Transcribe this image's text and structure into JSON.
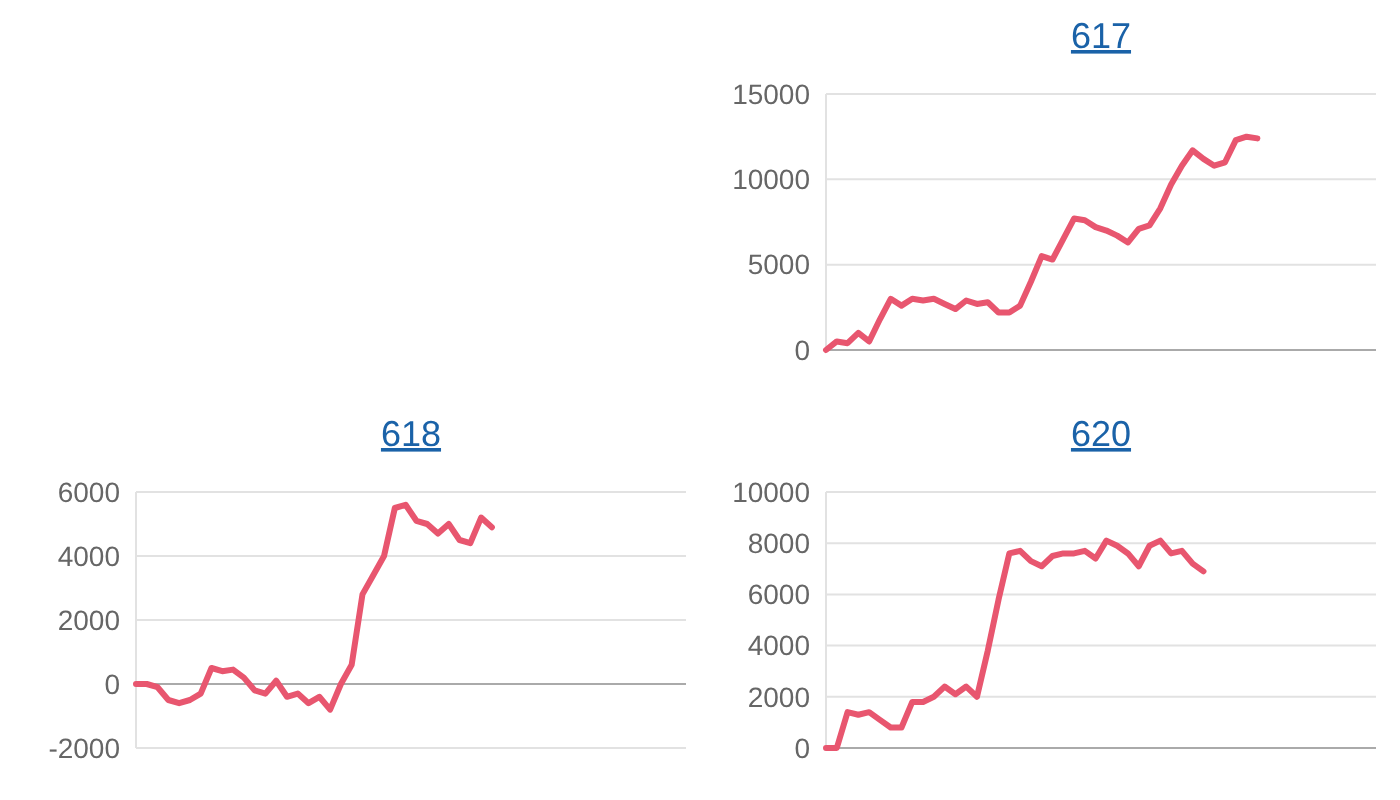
{
  "chart_data": [
    {
      "type": "line",
      "title": "617",
      "categories": [
        null,
        null,
        null,
        null,
        null,
        null,
        null,
        null,
        null,
        null,
        null,
        null,
        null,
        null,
        null,
        null,
        null,
        null,
        null,
        null,
        null,
        null,
        null,
        null,
        null,
        null,
        null,
        null,
        null,
        null,
        null,
        null,
        null,
        null,
        null,
        null,
        null,
        null,
        null,
        null,
        null,
        null,
        null,
        null,
        null,
        null,
        null,
        null,
        null,
        null,
        null,
        null
      ],
      "series": [
        {
          "color": "#e8566f",
          "values": [
            0,
            500,
            400,
            1000,
            500,
            1800,
            3000,
            2600,
            3000,
            2900,
            3000,
            2700,
            2400,
            2900,
            2700,
            2800,
            2200,
            2200,
            2600,
            4000,
            5500,
            5300,
            6500,
            7700,
            7600,
            7200,
            7000,
            6700,
            6300,
            7100,
            7300,
            8300,
            9700,
            10800,
            11700,
            11200,
            10800,
            11000,
            12300,
            12500,
            12400,
            null,
            null,
            null,
            null,
            null,
            null,
            null,
            null,
            null,
            null,
            null
          ]
        }
      ],
      "ylim": [
        0,
        15000
      ],
      "yticks": [
        0,
        5000,
        10000,
        15000
      ],
      "grid": "y",
      "tick_labels": "y"
    },
    {
      "type": "line",
      "title": "618",
      "categories": [
        null,
        null,
        null,
        null,
        null,
        null,
        null,
        null,
        null,
        null,
        null,
        null,
        null,
        null,
        null,
        null,
        null,
        null,
        null,
        null,
        null,
        null,
        null,
        null,
        null,
        null,
        null,
        null,
        null,
        null,
        null,
        null,
        null,
        null,
        null,
        null,
        null,
        null,
        null,
        null,
        null,
        null,
        null,
        null,
        null,
        null,
        null,
        null,
        null,
        null,
        null,
        null
      ],
      "series": [
        {
          "color": "#e8566f",
          "values": [
            0,
            0,
            -100,
            -500,
            -600,
            -500,
            -300,
            500,
            400,
            450,
            200,
            -200,
            -300,
            100,
            -400,
            -300,
            -600,
            -400,
            -800,
            0,
            600,
            2800,
            3400,
            4000,
            5500,
            5600,
            5100,
            5000,
            4700,
            5000,
            4500,
            4400,
            5200,
            4900,
            null,
            null,
            null,
            null,
            null,
            null,
            null,
            null,
            null,
            null,
            null,
            null,
            null,
            null,
            null,
            null,
            null,
            null
          ]
        }
      ],
      "ylim": [
        -2000,
        6000
      ],
      "yticks": [
        -2000,
        0,
        2000,
        4000,
        6000
      ],
      "grid": "y",
      "tick_labels": "y"
    },
    {
      "type": "line",
      "title": "620",
      "categories": [
        null,
        null,
        null,
        null,
        null,
        null,
        null,
        null,
        null,
        null,
        null,
        null,
        null,
        null,
        null,
        null,
        null,
        null,
        null,
        null,
        null,
        null,
        null,
        null,
        null,
        null,
        null,
        null,
        null,
        null,
        null,
        null,
        null,
        null,
        null,
        null,
        null,
        null,
        null,
        null,
        null,
        null,
        null,
        null,
        null,
        null,
        null,
        null,
        null,
        null,
        null,
        null
      ],
      "series": [
        {
          "color": "#e8566f",
          "values": [
            0,
            0,
            1400,
            1300,
            1400,
            1100,
            800,
            800,
            1800,
            1800,
            2000,
            2400,
            2100,
            2400,
            2000,
            3800,
            5800,
            7600,
            7700,
            7300,
            7100,
            7500,
            7600,
            7600,
            7700,
            7400,
            8100,
            7900,
            7600,
            7100,
            7900,
            8100,
            7600,
            7700,
            7200,
            6900,
            null,
            null,
            null,
            null,
            null,
            null,
            null,
            null,
            null,
            null,
            null,
            null,
            null,
            null,
            null,
            null
          ]
        }
      ],
      "ylim": [
        0,
        10000
      ],
      "yticks": [
        0,
        2000,
        4000,
        6000,
        8000,
        10000
      ],
      "grid": "y",
      "tick_labels": "y"
    }
  ]
}
